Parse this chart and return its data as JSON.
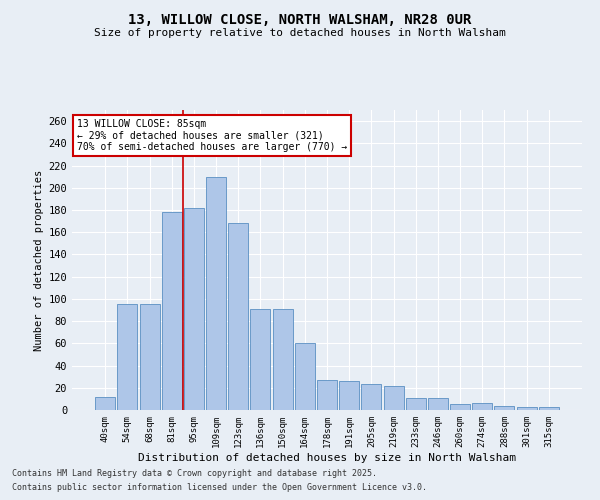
{
  "title1": "13, WILLOW CLOSE, NORTH WALSHAM, NR28 0UR",
  "title2": "Size of property relative to detached houses in North Walsham",
  "xlabel": "Distribution of detached houses by size in North Walsham",
  "ylabel": "Number of detached properties",
  "categories": [
    "40sqm",
    "54sqm",
    "68sqm",
    "81sqm",
    "95sqm",
    "109sqm",
    "123sqm",
    "136sqm",
    "150sqm",
    "164sqm",
    "178sqm",
    "191sqm",
    "205sqm",
    "219sqm",
    "233sqm",
    "246sqm",
    "260sqm",
    "274sqm",
    "288sqm",
    "301sqm",
    "315sqm"
  ],
  "values": [
    12,
    95,
    95,
    178,
    182,
    210,
    168,
    91,
    91,
    60,
    27,
    26,
    23,
    22,
    11,
    11,
    5,
    6,
    4,
    3,
    3
  ],
  "bar_color": "#aec6e8",
  "bar_edge_color": "#5a8fc2",
  "vline_x": 4,
  "annotation_text": "13 WILLOW CLOSE: 85sqm\n← 29% of detached houses are smaller (321)\n70% of semi-detached houses are larger (770) →",
  "annotation_box_color": "#ffffff",
  "annotation_box_edge": "#cc0000",
  "vline_color": "#cc0000",
  "background_color": "#e8eef5",
  "grid_color": "#ffffff",
  "footer1": "Contains HM Land Registry data © Crown copyright and database right 2025.",
  "footer2": "Contains public sector information licensed under the Open Government Licence v3.0.",
  "ylim": [
    0,
    270
  ],
  "yticks": [
    0,
    20,
    40,
    60,
    80,
    100,
    120,
    140,
    160,
    180,
    200,
    220,
    240,
    260
  ]
}
